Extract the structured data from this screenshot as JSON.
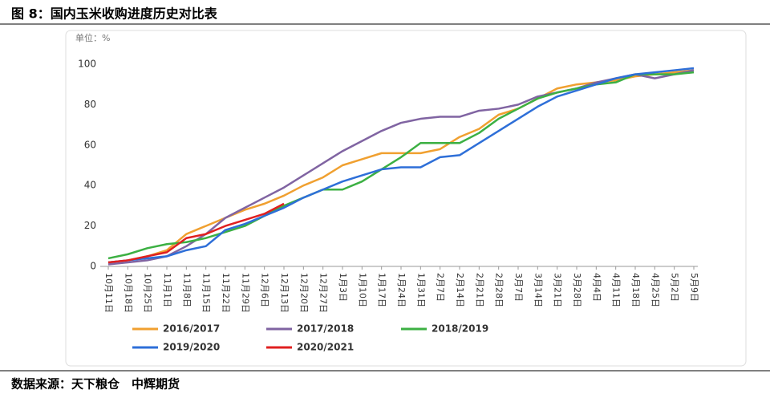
{
  "caption": "图 8：国内玉米收购进度历史对比表",
  "source": "数据来源：天下粮仓　中辉期货",
  "chart_data": {
    "type": "line",
    "unit_label": "单位：%",
    "categories": [
      "10月11日",
      "10月18日",
      "10月25日",
      "11月1日",
      "11月8日",
      "11月15日",
      "11月22日",
      "11月29日",
      "12月6日",
      "12月13日",
      "12月20日",
      "12月27日",
      "1月3日",
      "1月10日",
      "1月17日",
      "1月24日",
      "1月31日",
      "2月7日",
      "2月14日",
      "2月21日",
      "2月28日",
      "3月7日",
      "3月14日",
      "3月21日",
      "3月28日",
      "4月4日",
      "4月11日",
      "4月18日",
      "4月25日",
      "5月2日",
      "5月9日"
    ],
    "series": [
      {
        "name": "2016/2017",
        "color": "#f0a030",
        "values": [
          2,
          3,
          5,
          8,
          16,
          20,
          24,
          28,
          31,
          35,
          40,
          44,
          50,
          53,
          56,
          56,
          56,
          58,
          64,
          68,
          75,
          78,
          83,
          88,
          90,
          91,
          92,
          94,
          95,
          96,
          97
        ]
      },
      {
        "name": "2017/2018",
        "color": "#8064a2",
        "values": [
          1,
          2,
          3,
          5,
          10,
          16,
          24,
          29,
          34,
          39,
          45,
          51,
          57,
          62,
          67,
          71,
          73,
          74,
          74,
          77,
          78,
          80,
          84,
          86,
          88,
          91,
          93,
          95,
          93,
          95,
          97
        ]
      },
      {
        "name": "2018/2019",
        "color": "#3cb043",
        "values": [
          4,
          6,
          9,
          11,
          12,
          14,
          17,
          20,
          25,
          30,
          34,
          38,
          38,
          42,
          48,
          54,
          61,
          61,
          61,
          66,
          73,
          78,
          83,
          86,
          88,
          90,
          91,
          95,
          95,
          95,
          96
        ]
      },
      {
        "name": "2019/2020",
        "color": "#2e6fd8",
        "values": [
          2,
          3,
          4,
          5,
          8,
          10,
          18,
          21,
          25,
          29,
          34,
          38,
          42,
          45,
          48,
          49,
          49,
          54,
          55,
          61,
          67,
          73,
          79,
          84,
          87,
          90,
          93,
          95,
          96,
          97,
          98
        ]
      },
      {
        "name": "2020/2021",
        "color": "#e02020",
        "values": [
          2,
          3,
          5,
          7,
          14,
          16,
          20,
          23,
          26,
          31,
          null,
          null,
          null,
          null,
          null,
          null,
          null,
          null,
          null,
          null,
          null,
          null,
          null,
          null,
          null,
          null,
          null,
          null,
          null,
          null,
          null
        ]
      }
    ],
    "ylim": [
      0,
      100
    ],
    "yticks": [
      0,
      20,
      40,
      60,
      80,
      100
    ],
    "grid": false
  }
}
